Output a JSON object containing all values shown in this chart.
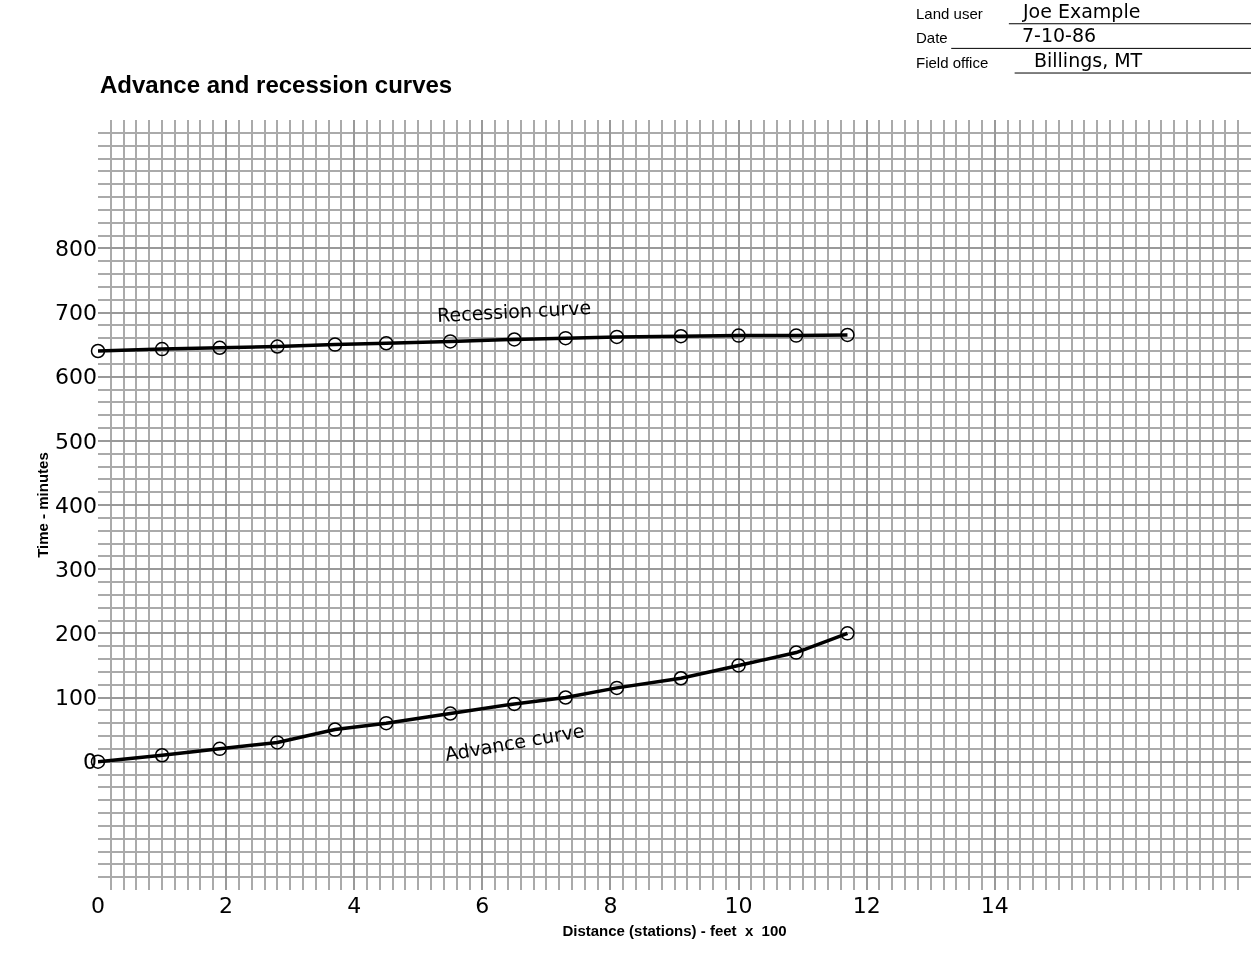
{
  "chart_data": {
    "type": "line",
    "title": "Advance and recession curves",
    "xlabel": "Distance (stations) - feet  x  100",
    "ylabel": "Time - minutes",
    "x": [
      0,
      1,
      1.9,
      2.8,
      3.7,
      4.5,
      5.5,
      6.5,
      7.3,
      8.1,
      9.1,
      10,
      10.9,
      11.7
    ],
    "series": [
      {
        "name": "Recession curve",
        "color": "#000000",
        "values": [
          640,
          643,
          645,
          647,
          650,
          652,
          655,
          658,
          660,
          662,
          663,
          664,
          664,
          665
        ]
      },
      {
        "name": "Advance curve",
        "color": "#000000",
        "values": [
          0,
          10,
          20,
          30,
          50,
          60,
          75,
          90,
          100,
          115,
          130,
          150,
          170,
          200
        ]
      }
    ],
    "annotations": [
      "Land user",
      "Joe Example",
      "Date",
      "7-10-86",
      "Field office",
      "Billings, MT"
    ],
    "xlim": [
      0,
      18
    ],
    "xticks": [
      0,
      2,
      4,
      6,
      8,
      10,
      12,
      14
    ],
    "ylim": [
      -200,
      1000
    ],
    "yticks": [
      0,
      100,
      200,
      300,
      400,
      500,
      600,
      700,
      800
    ],
    "grid": true,
    "marker": "circle",
    "line_style": "solid",
    "legend": false
  }
}
